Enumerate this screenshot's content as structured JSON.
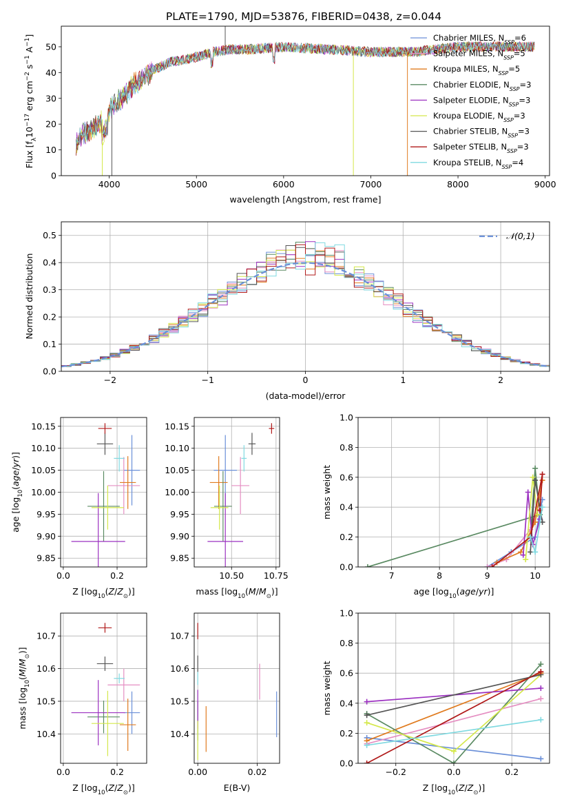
{
  "figure_title": "PLATE=1790, MJD=53876, FIBERID=0438, z=0.044",
  "legend": [
    {
      "model": "Chabrier MILES",
      "n": "6",
      "color": "#6a8fd8"
    },
    {
      "model": "Salpeter MILES",
      "n": "5",
      "color": "#e58ec2"
    },
    {
      "model": "Kroupa MILES",
      "n": "5",
      "color": "#e07b1f"
    },
    {
      "model": "Chabrier ELODIE",
      "n": "3",
      "color": "#5a8a62"
    },
    {
      "model": "Salpeter ELODIE",
      "n": "3",
      "color": "#9b30c0"
    },
    {
      "model": "Kroupa ELODIE",
      "n": "3",
      "color": "#d4e84a"
    },
    {
      "model": "Chabrier STELIB",
      "n": "3",
      "color": "#555555"
    },
    {
      "model": "Salpeter STELIB",
      "n": "3",
      "color": "#b01818"
    },
    {
      "model": "Kroupa STELIB",
      "n": "4",
      "color": "#7fd9e0"
    }
  ],
  "chart_data": [
    {
      "id": "spectrum",
      "type": "line",
      "xlabel": "wavelength [Angstrom, rest frame]",
      "ylabel": "Flux [f_λ10^-17 erg cm^-2 s^-1 A^-1]",
      "xlim": [
        3450,
        9050
      ],
      "ylim": [
        0,
        58
      ],
      "xticks": [
        4000,
        5000,
        6000,
        7000,
        8000,
        9000
      ],
      "yticks": [
        0,
        10,
        20,
        30,
        40,
        50
      ],
      "grid": false,
      "legend_position": "top-right",
      "x_range_data": [
        3620,
        8880
      ],
      "continuum": {
        "x": [
          3620,
          3700,
          3800,
          3900,
          4000,
          4100,
          4200,
          4300,
          4400,
          4500,
          4700,
          5000,
          5200,
          5400,
          5600,
          6000,
          6500,
          7000,
          7500,
          8000,
          8500,
          8880
        ],
        "y": [
          12,
          16,
          18,
          21,
          25,
          29,
          32,
          36,
          38,
          41,
          44,
          46,
          48,
          49,
          49,
          50,
          49,
          48,
          48,
          50,
          50,
          50
        ]
      },
      "spikes": [
        {
          "x": 3920,
          "y": 0
        },
        {
          "x": 4030,
          "y": 0
        },
        {
          "x": 5330,
          "y": 58
        },
        {
          "x": 6800,
          "y": 0
        },
        {
          "x": 7420,
          "y": 0
        }
      ]
    },
    {
      "id": "residual_histogram",
      "type": "bar",
      "xlabel": "(data-model)/error",
      "ylabel": "Normed distribution",
      "xlim": [
        -2.5,
        2.5
      ],
      "ylim": [
        0,
        0.55
      ],
      "xticks": [
        -2,
        -1,
        0,
        1,
        2
      ],
      "yticks": [
        0.0,
        0.1,
        0.2,
        0.3,
        0.4,
        0.5
      ],
      "grid": true,
      "bin_width": 0.1,
      "reference_curve": {
        "name": "𝒩(0,1)",
        "mean": 0,
        "sigma": 1,
        "color": "#6a8fd8",
        "style": "dashed"
      },
      "legend_position": "top-right"
    },
    {
      "id": "age_vs_Z",
      "type": "scatter",
      "xlabel": "Z [log10(Z/Z⊙)]",
      "ylabel": "age  [log10(age/yr)]",
      "xlim": [
        -0.01,
        0.31
      ],
      "ylim": [
        9.83,
        10.17
      ],
      "xticks": [
        0.0,
        0.2
      ],
      "yticks": [
        9.85,
        9.9,
        9.95,
        10.0,
        10.05,
        10.1,
        10.15
      ],
      "grid": true,
      "points": [
        {
          "model": "Chabrier MILES",
          "x": 0.255,
          "y": 10.05,
          "xerr": 0.03,
          "yerr": 0.08
        },
        {
          "model": "Salpeter MILES",
          "x": 0.225,
          "y": 10.015,
          "xerr": 0.06,
          "yerr": 0.065
        },
        {
          "model": "Kroupa MILES",
          "x": 0.24,
          "y": 10.022,
          "xerr": 0.03,
          "yerr": 0.06
        },
        {
          "model": "Chabrier ELODIE",
          "x": 0.15,
          "y": 9.968,
          "xerr": 0.06,
          "yerr": 0.08
        },
        {
          "model": "Salpeter ELODIE",
          "x": 0.13,
          "y": 9.888,
          "xerr": 0.1,
          "yerr": 0.11
        },
        {
          "model": "Kroupa ELODIE",
          "x": 0.165,
          "y": 9.965,
          "xerr": 0.06,
          "yerr": 0.05
        },
        {
          "model": "Chabrier STELIB",
          "x": 0.155,
          "y": 10.11,
          "xerr": 0.03,
          "yerr": 0.025
        },
        {
          "model": "Salpeter STELIB",
          "x": 0.155,
          "y": 10.145,
          "xerr": 0.025,
          "yerr": 0.012
        },
        {
          "model": "Kroupa STELIB",
          "x": 0.208,
          "y": 10.077,
          "xerr": 0.02,
          "yerr": 0.03
        }
      ]
    },
    {
      "id": "age_vs_mass",
      "type": "scatter",
      "xlabel": "mass [log10(M/M⊙)]",
      "ylabel": "",
      "xlim": [
        10.29,
        10.77
      ],
      "ylim": [
        9.83,
        10.17
      ],
      "xticks": [
        10.5,
        10.75
      ],
      "yticks": [
        9.85,
        9.9,
        9.95,
        10.0,
        10.05,
        10.1,
        10.15
      ],
      "grid": true,
      "points": [
        {
          "model": "Chabrier MILES",
          "x": 10.465,
          "y": 10.05,
          "xerr": 0.065,
          "yerr": 0.08
        },
        {
          "model": "Salpeter MILES",
          "x": 10.55,
          "y": 10.015,
          "xerr": 0.05,
          "yerr": 0.065
        },
        {
          "model": "Kroupa MILES",
          "x": 10.428,
          "y": 10.022,
          "xerr": 0.05,
          "yerr": 0.06
        },
        {
          "model": "Chabrier ELODIE",
          "x": 10.452,
          "y": 9.968,
          "xerr": 0.05,
          "yerr": 0.08
        },
        {
          "model": "Salpeter ELODIE",
          "x": 10.465,
          "y": 9.888,
          "xerr": 0.1,
          "yerr": 0.11
        },
        {
          "model": "Kroupa ELODIE",
          "x": 10.432,
          "y": 9.965,
          "xerr": 0.05,
          "yerr": 0.05
        },
        {
          "model": "Chabrier STELIB",
          "x": 10.615,
          "y": 10.11,
          "xerr": 0.02,
          "yerr": 0.025
        },
        {
          "model": "Salpeter STELIB",
          "x": 10.725,
          "y": 10.145,
          "xerr": 0.015,
          "yerr": 0.012
        },
        {
          "model": "Kroupa STELIB",
          "x": 10.57,
          "y": 10.077,
          "xerr": 0.015,
          "yerr": 0.03
        }
      ]
    },
    {
      "id": "weight_vs_age",
      "type": "line",
      "xlabel": "age  [log10(age/yr)]",
      "ylabel": "mass weight",
      "xlim": [
        6.3,
        10.3
      ],
      "ylim": [
        0,
        1.0
      ],
      "xticks": [
        7,
        8,
        9,
        10
      ],
      "yticks": [
        0.0,
        0.2,
        0.4,
        0.6,
        0.8,
        1.0
      ],
      "grid": true,
      "series": [
        {
          "model": "Chabrier ELODIE",
          "x": [
            6.5,
            10.1,
            10.0,
            9.9
          ],
          "y": [
            0.0,
            0.35,
            0.66,
            0.2
          ]
        },
        {
          "model": "Chabrier MILES",
          "x": [
            9.0,
            9.5,
            10.0,
            10.15
          ],
          "y": [
            0.0,
            0.1,
            0.2,
            0.45
          ]
        },
        {
          "model": "Salpeter MILES",
          "x": [
            9.0,
            9.4,
            9.9,
            10.1
          ],
          "y": [
            0.0,
            0.05,
            0.25,
            0.4
          ]
        },
        {
          "model": "Kroupa MILES",
          "x": [
            9.2,
            9.7,
            10.0,
            10.15
          ],
          "y": [
            0.03,
            0.1,
            0.3,
            0.58
          ]
        },
        {
          "model": "Salpeter ELODIE",
          "x": [
            9.75,
            9.85,
            9.95,
            10.1
          ],
          "y": [
            0.08,
            0.5,
            0.15,
            0.32
          ]
        },
        {
          "model": "Kroupa ELODIE",
          "x": [
            9.8,
            9.95,
            10.05
          ],
          "y": [
            0.05,
            0.6,
            0.35
          ]
        },
        {
          "model": "Chabrier STELIB",
          "x": [
            9.9,
            10.0,
            10.15
          ],
          "y": [
            0.1,
            0.58,
            0.3
          ]
        },
        {
          "model": "Salpeter STELIB",
          "x": [
            9.1,
            9.9,
            10.15,
            10.1
          ],
          "y": [
            0.0,
            0.2,
            0.62,
            0.38
          ]
        },
        {
          "model": "Kroupa STELIB",
          "x": [
            9.9,
            10.0,
            10.15
          ],
          "y": [
            0.2,
            0.1,
            0.4
          ]
        }
      ]
    },
    {
      "id": "mass_vs_Z",
      "type": "scatter",
      "xlabel": "Z [log10(Z/Z⊙)]",
      "ylabel": "mass [log10(M/M⊙)]",
      "xlim": [
        -0.01,
        0.31
      ],
      "ylim": [
        10.31,
        10.77
      ],
      "xticks": [
        0.0,
        0.2
      ],
      "yticks": [
        10.4,
        10.5,
        10.6,
        10.7
      ],
      "grid": true,
      "points": [
        {
          "model": "Chabrier MILES",
          "x": 0.255,
          "y": 10.465,
          "xerr": 0.03,
          "yerr": 0.065
        },
        {
          "model": "Salpeter MILES",
          "x": 0.225,
          "y": 10.55,
          "xerr": 0.06,
          "yerr": 0.05
        },
        {
          "model": "Kroupa MILES",
          "x": 0.24,
          "y": 10.428,
          "xerr": 0.03,
          "yerr": 0.08
        },
        {
          "model": "Chabrier ELODIE",
          "x": 0.15,
          "y": 10.452,
          "xerr": 0.06,
          "yerr": 0.05
        },
        {
          "model": "Salpeter ELODIE",
          "x": 0.13,
          "y": 10.465,
          "xerr": 0.1,
          "yerr": 0.1
        },
        {
          "model": "Kroupa ELODIE",
          "x": 0.165,
          "y": 10.432,
          "xerr": 0.06,
          "yerr": 0.1
        },
        {
          "model": "Chabrier STELIB",
          "x": 0.155,
          "y": 10.615,
          "xerr": 0.03,
          "yerr": 0.022
        },
        {
          "model": "Salpeter STELIB",
          "x": 0.155,
          "y": 10.725,
          "xerr": 0.025,
          "yerr": 0.015
        },
        {
          "model": "Kroupa STELIB",
          "x": 0.208,
          "y": 10.57,
          "xerr": 0.02,
          "yerr": 0.015
        }
      ]
    },
    {
      "id": "mass_vs_EBV",
      "type": "scatter",
      "xlabel": "E(B-V)",
      "ylabel": "",
      "xlim": [
        -0.0012,
        0.0275
      ],
      "ylim": [
        10.31,
        10.77
      ],
      "xticks": [
        0.0,
        0.02
      ],
      "yticks": [
        10.4,
        10.5,
        10.6,
        10.7
      ],
      "grid": true,
      "points": [
        {
          "model": "Chabrier MILES",
          "x": 0.0265,
          "y": 10.46,
          "xerr": 0,
          "yerr": 0.07
        },
        {
          "model": "Salpeter MILES",
          "x": 0.0208,
          "y": 10.56,
          "xerr": 0,
          "yerr": 0.055
        },
        {
          "model": "Kroupa MILES",
          "x": 0.0028,
          "y": 10.415,
          "xerr": 0,
          "yerr": 0.07
        },
        {
          "model": "Chabrier ELODIE",
          "x": 0.0,
          "y": 10.44,
          "xerr": 0,
          "yerr": 0.06
        },
        {
          "model": "Salpeter ELODIE",
          "x": 0.0,
          "y": 10.475,
          "xerr": 0,
          "yerr": 0.06
        },
        {
          "model": "Kroupa ELODIE",
          "x": 0.0,
          "y": 10.38,
          "xerr": 0,
          "yerr": 0.06
        },
        {
          "model": "Chabrier STELIB",
          "x": 0.0,
          "y": 10.615,
          "xerr": 0,
          "yerr": 0.025
        },
        {
          "model": "Salpeter STELIB",
          "x": 0.0,
          "y": 10.715,
          "xerr": 0,
          "yerr": 0.025
        },
        {
          "model": "Kroupa STELIB",
          "x": 0.0,
          "y": 10.57,
          "xerr": 0,
          "yerr": 0.02
        }
      ]
    },
    {
      "id": "weight_vs_Z",
      "type": "line",
      "xlabel": "Z [log10(Z/Z⊙)]",
      "ylabel": "mass weight",
      "xlim": [
        -0.33,
        0.33
      ],
      "ylim": [
        0,
        1.0
      ],
      "xticks": [
        -0.2,
        0.0,
        0.2
      ],
      "yticks": [
        0.0,
        0.2,
        0.4,
        0.6,
        0.8,
        1.0
      ],
      "grid": true,
      "series": [
        {
          "model": "Chabrier MILES",
          "x": [
            -0.3,
            0.3
          ],
          "y": [
            0.17,
            0.03
          ]
        },
        {
          "model": "Salpeter MILES",
          "x": [
            -0.3,
            0.3
          ],
          "y": [
            0.13,
            0.43
          ]
        },
        {
          "model": "Kroupa MILES",
          "x": [
            -0.3,
            0.3
          ],
          "y": [
            0.15,
            0.6
          ]
        },
        {
          "model": "Chabrier ELODIE",
          "x": [
            -0.3,
            0.0,
            0.3
          ],
          "y": [
            0.33,
            0.0,
            0.66
          ]
        },
        {
          "model": "Salpeter ELODIE",
          "x": [
            -0.3,
            0.3
          ],
          "y": [
            0.41,
            0.5
          ]
        },
        {
          "model": "Kroupa ELODIE",
          "x": [
            -0.3,
            0.0,
            0.3
          ],
          "y": [
            0.27,
            0.08,
            0.59
          ]
        },
        {
          "model": "Chabrier STELIB",
          "x": [
            -0.3,
            0.3
          ],
          "y": [
            0.32,
            0.59
          ]
        },
        {
          "model": "Salpeter STELIB",
          "x": [
            -0.3,
            0.3
          ],
          "y": [
            0.0,
            0.61
          ]
        },
        {
          "model": "Kroupa STELIB",
          "x": [
            -0.3,
            0.3
          ],
          "y": [
            0.12,
            0.29
          ]
        }
      ]
    }
  ]
}
